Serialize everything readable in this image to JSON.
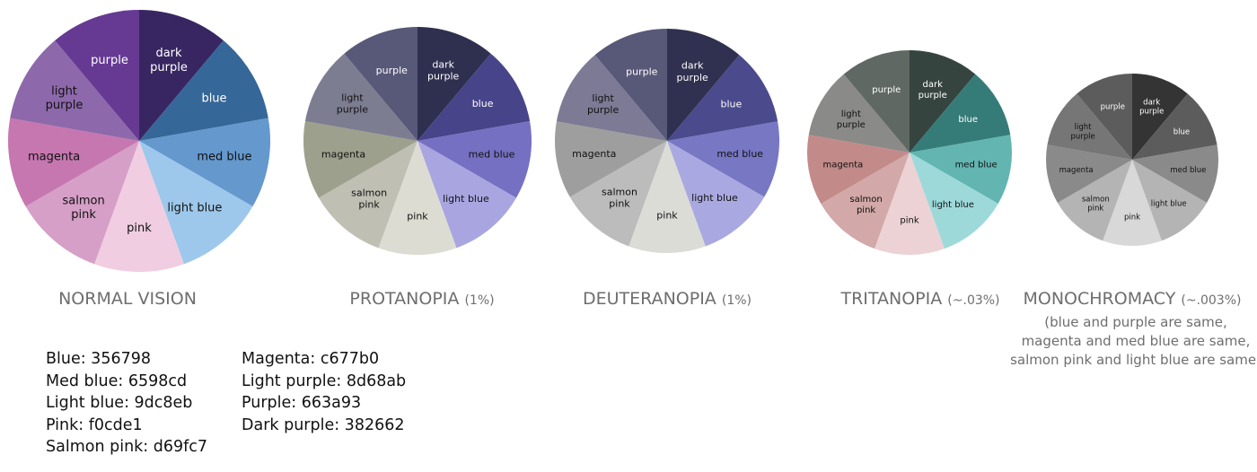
{
  "chart_data": [
    {
      "type": "pie",
      "title": "NORMAL VISION",
      "subtitle": "",
      "categories": [
        "dark purple",
        "blue",
        "med blue",
        "light blue",
        "pink",
        "salmon pink",
        "magenta",
        "light purple",
        "purple"
      ],
      "values": [
        1,
        1,
        1,
        1,
        1,
        1,
        1,
        1,
        1
      ],
      "colors": [
        "#382662",
        "#356798",
        "#6598cd",
        "#9dc8eb",
        "#f0cde1",
        "#d69fc7",
        "#c677b0",
        "#8d68ab",
        "#663a93"
      ]
    },
    {
      "type": "pie",
      "title": "PROTANOPIA",
      "subtitle": "(1%)",
      "categories": [
        "dark purple",
        "blue",
        "med blue",
        "light blue",
        "pink",
        "salmon pink",
        "magenta",
        "light purple",
        "purple"
      ],
      "values": [
        1,
        1,
        1,
        1,
        1,
        1,
        1,
        1,
        1
      ],
      "colors": [
        "#2f3050",
        "#48448a",
        "#7570c2",
        "#a8a5e0",
        "#dcdcd2",
        "#bfbfb4",
        "#9da08c",
        "#7d7d92",
        "#585878"
      ]
    },
    {
      "type": "pie",
      "title": "DEUTERANOPIA",
      "subtitle": "(1%)",
      "categories": [
        "dark purple",
        "blue",
        "med blue",
        "light blue",
        "pink",
        "salmon pink",
        "magenta",
        "light purple",
        "purple"
      ],
      "values": [
        1,
        1,
        1,
        1,
        1,
        1,
        1,
        1,
        1
      ],
      "colors": [
        "#303050",
        "#4a4a8c",
        "#7777c4",
        "#aaa8e0",
        "#dcdcd6",
        "#bcbcbc",
        "#9e9e9e",
        "#7c7a94",
        "#585878"
      ]
    },
    {
      "type": "pie",
      "title": "TRITANOPIA",
      "subtitle": "(~.03%)",
      "categories": [
        "dark purple",
        "blue",
        "med blue",
        "light blue",
        "pink",
        "salmon pink",
        "magenta",
        "light purple",
        "purple"
      ],
      "values": [
        1,
        1,
        1,
        1,
        1,
        1,
        1,
        1,
        1
      ],
      "colors": [
        "#364440",
        "#357c78",
        "#62b5b1",
        "#9ed9da",
        "#ecd2d4",
        "#d2a8a8",
        "#c28a89",
        "#8a8a88",
        "#606864"
      ]
    },
    {
      "type": "pie",
      "title": "MONOCHROMACY",
      "subtitle": "(~.003%)",
      "note": [
        "(blue and purple are same,",
        "magenta and med blue are same,",
        "salmon pink and light blue are same)"
      ],
      "categories": [
        "dark purple",
        "blue",
        "med blue",
        "light blue",
        "pink",
        "salmon pink",
        "magenta",
        "light purple",
        "purple"
      ],
      "values": [
        1,
        1,
        1,
        1,
        1,
        1,
        1,
        1,
        1
      ],
      "colors": [
        "#343434",
        "#5c5c5c",
        "#8a8a8a",
        "#b4b4b4",
        "#d8d8d8",
        "#b4b4b4",
        "#8a8a8a",
        "#767676",
        "#5c5c5c"
      ]
    }
  ],
  "labels": {
    "dark purple": [
      "dark",
      "purple"
    ],
    "blue": [
      "blue"
    ],
    "med blue": [
      "med blue"
    ],
    "light blue": [
      "light blue"
    ],
    "pink": [
      "pink"
    ],
    "salmon pink": [
      "salmon",
      "pink"
    ],
    "magenta": [
      "magenta"
    ],
    "light purple": [
      "light",
      "purple"
    ],
    "purple": [
      "purple"
    ]
  },
  "legend": {
    "left": [
      "Blue: 356798",
      "Med blue: 6598cd",
      "Light blue: 9dc8eb",
      "Pink: f0cde1",
      "Salmon pink: d69fc7"
    ],
    "right": [
      "Magenta: c677b0",
      "Light purple: 8d68ab",
      "Purple: 663a93",
      "Dark purple: 382662"
    ]
  }
}
